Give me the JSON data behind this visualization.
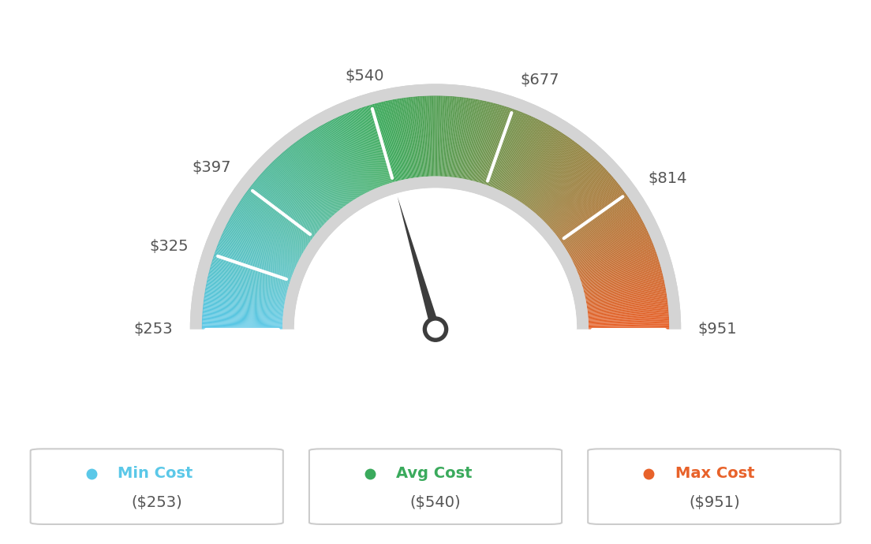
{
  "min_val": 253,
  "max_val": 951,
  "avg_val": 540,
  "tick_values": [
    253,
    325,
    397,
    540,
    677,
    814,
    951
  ],
  "tick_labels": [
    "$253",
    "$325",
    "$397",
    "$540",
    "$677",
    "$814",
    "$951"
  ],
  "min_cost_label": "Min Cost",
  "avg_cost_label": "Avg Cost",
  "max_cost_label": "Max Cost",
  "min_cost_value": "($253)",
  "avg_cost_value": "($540)",
  "max_cost_value": "($951)",
  "min_color": "#5bc8e8",
  "avg_color": "#3aaa5c",
  "max_color": "#e8622a",
  "needle_value": 540,
  "bg_color": "#ffffff",
  "text_color": "#555555",
  "gauge_bg_color": "#e0e0e0",
  "n_gradient_steps": 300
}
